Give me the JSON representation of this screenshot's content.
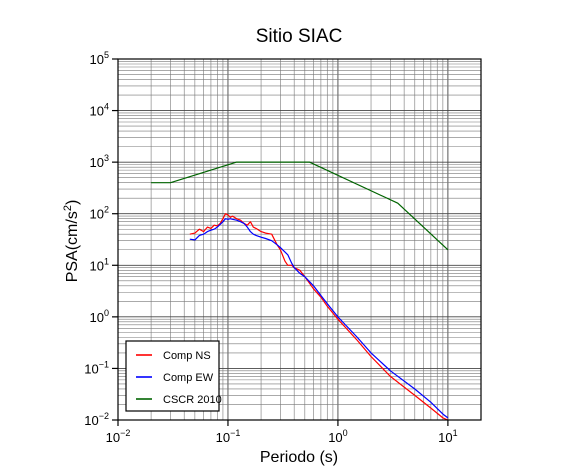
{
  "chart_data": {
    "type": "line",
    "title": "Sitio SIAC",
    "xlabel": "Periodo (s)",
    "ylabel_main": "PSA(cm/s",
    "ylabel_sup": "2",
    "ylabel_close": ")",
    "x_scale": "log",
    "y_scale": "log",
    "xlim": [
      0.01,
      20
    ],
    "ylim": [
      0.01,
      100000
    ],
    "grid": true,
    "legend_position": "bottom-left",
    "x_ticks": [
      {
        "value": 0.01,
        "base": "10",
        "exp": "−2"
      },
      {
        "value": 0.1,
        "base": "10",
        "exp": "−1"
      },
      {
        "value": 1,
        "base": "10",
        "exp": "0"
      },
      {
        "value": 10,
        "base": "10",
        "exp": "1"
      }
    ],
    "y_ticks": [
      {
        "value": 0.01,
        "base": "10",
        "exp": "−2"
      },
      {
        "value": 0.1,
        "base": "10",
        "exp": "−1"
      },
      {
        "value": 1,
        "base": "10",
        "exp": "0"
      },
      {
        "value": 10,
        "base": "10",
        "exp": "1"
      },
      {
        "value": 100,
        "base": "10",
        "exp": "2"
      },
      {
        "value": 1000,
        "base": "10",
        "exp": "3"
      },
      {
        "value": 10000,
        "base": "10",
        "exp": "4"
      },
      {
        "value": 100000,
        "base": "10",
        "exp": "5"
      }
    ],
    "series": [
      {
        "name": "Comp NS",
        "color": "#ff0000",
        "x": [
          0.045,
          0.05,
          0.055,
          0.06,
          0.065,
          0.07,
          0.075,
          0.08,
          0.085,
          0.09,
          0.095,
          0.1,
          0.105,
          0.11,
          0.12,
          0.13,
          0.14,
          0.15,
          0.16,
          0.17,
          0.18,
          0.2,
          0.22,
          0.25,
          0.28,
          0.3,
          0.33,
          0.35,
          0.38,
          0.4,
          0.45,
          0.5,
          0.6,
          0.7,
          0.8,
          1.0,
          1.5,
          2,
          3,
          5,
          7,
          9,
          10
        ],
        "y": [
          40,
          42,
          50,
          45,
          55,
          52,
          60,
          58,
          65,
          80,
          100,
          95,
          85,
          90,
          80,
          75,
          65,
          60,
          70,
          55,
          52,
          45,
          42,
          40,
          25,
          20,
          12,
          10,
          10,
          9,
          8,
          6,
          3.5,
          2.4,
          1.6,
          0.9,
          0.35,
          0.17,
          0.07,
          0.03,
          0.017,
          0.011,
          0.01
        ]
      },
      {
        "name": "Comp EW",
        "color": "#0000ff",
        "x": [
          0.045,
          0.05,
          0.055,
          0.06,
          0.065,
          0.07,
          0.075,
          0.08,
          0.085,
          0.09,
          0.095,
          0.1,
          0.105,
          0.11,
          0.12,
          0.13,
          0.14,
          0.15,
          0.16,
          0.17,
          0.18,
          0.2,
          0.22,
          0.25,
          0.28,
          0.3,
          0.33,
          0.35,
          0.38,
          0.4,
          0.45,
          0.5,
          0.6,
          0.7,
          0.8,
          1.0,
          1.5,
          2,
          3,
          5,
          7,
          9,
          10
        ],
        "y": [
          32,
          31,
          38,
          40,
          45,
          48,
          50,
          55,
          62,
          70,
          80,
          78,
          80,
          78,
          75,
          70,
          65,
          55,
          45,
          40,
          38,
          35,
          33,
          30,
          25,
          22,
          18,
          16,
          11,
          9,
          7,
          6,
          4,
          2.6,
          1.8,
          1.0,
          0.4,
          0.2,
          0.09,
          0.04,
          0.022,
          0.013,
          0.011
        ]
      },
      {
        "name": "CSCR 2010",
        "color": "#006400",
        "x": [
          0.02,
          0.03,
          0.12,
          0.55,
          3.5,
          10
        ],
        "y": [
          400,
          400,
          1000,
          1000,
          160,
          20
        ]
      }
    ]
  }
}
